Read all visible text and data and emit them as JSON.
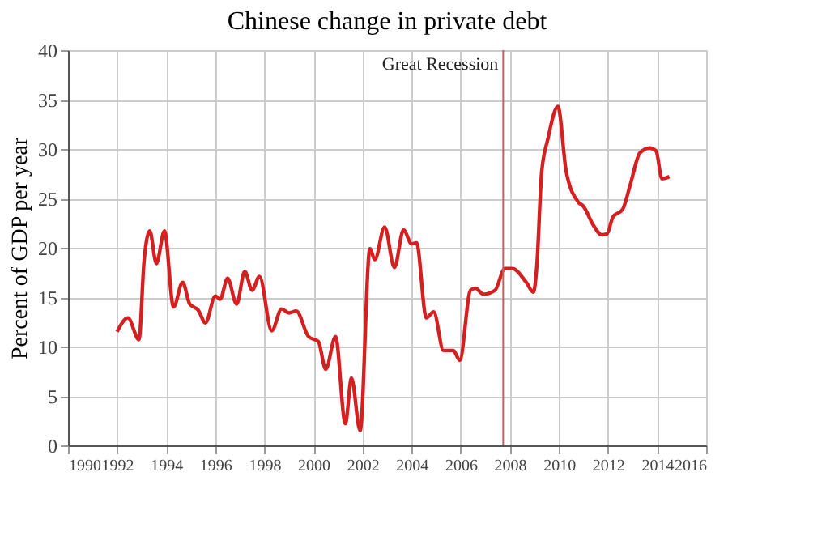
{
  "chart_data": {
    "type": "line",
    "title": "Chinese change in private debt",
    "ylabel": "Percent of GDP per year",
    "series": [
      {
        "color": "#d42020",
        "x": [
          1992.0,
          1992.44,
          1992.89,
          1993.1,
          1993.33,
          1993.6,
          1993.93,
          1994.3,
          1994.67,
          1994.96,
          1995.3,
          1995.6,
          1996.0,
          1996.2,
          1996.5,
          1996.87,
          1997.2,
          1997.5,
          1997.8,
          1998.3,
          1998.7,
          1999.0,
          1999.3,
          1999.8,
          2000.2,
          2000.5,
          2000.9,
          2001.3,
          2001.55,
          2001.9,
          2002.3,
          2002.5,
          2002.9,
          2003.3,
          2003.67,
          2004.0,
          2004.2,
          2004.6,
          2004.9,
          2005.3,
          2005.7,
          2005.96,
          2006.4,
          2006.6,
          2006.93,
          2007.4,
          2007.8,
          2008.1,
          2008.67,
          2008.96,
          2009.1,
          2009.3,
          2009.55,
          2009.96,
          2010.3,
          2010.8,
          2011.0,
          2011.4,
          2011.75,
          2011.96,
          2012.2,
          2012.6,
          2012.9,
          2013.3,
          2013.7,
          2013.96,
          2014.2,
          2014.5
        ],
        "values": [
          11.5,
          12.9,
          10.7,
          18.7,
          21.7,
          18.4,
          21.7,
          14.0,
          16.5,
          14.3,
          13.7,
          12.4,
          15.1,
          14.8,
          16.9,
          14.3,
          17.6,
          15.7,
          17.1,
          11.6,
          13.8,
          13.4,
          13.6,
          11.0,
          10.5,
          7.7,
          11.0,
          2.2,
          6.8,
          1.5,
          19.9,
          18.8,
          22.1,
          18.0,
          21.8,
          20.4,
          20.5,
          12.9,
          13.5,
          9.6,
          9.6,
          8.6,
          15.7,
          15.9,
          15.3,
          15.7,
          17.9,
          17.9,
          16.5,
          15.5,
          18.1,
          27.7,
          31.0,
          34.3,
          27.7,
          24.6,
          24.2,
          22.3,
          21.3,
          21.4,
          23.1,
          23.9,
          26.3,
          29.6,
          30.1,
          29.8,
          27.0,
          27.2
        ]
      }
    ],
    "xlim": [
      1990,
      2016
    ],
    "xticks": [
      1990,
      1992,
      1994,
      1996,
      1998,
      2000,
      2002,
      2004,
      2006,
      2008,
      2010,
      2012,
      2014,
      2016
    ],
    "ylim": [
      0,
      40
    ],
    "yticks": [
      0,
      5,
      10,
      15,
      20,
      25,
      30,
      35,
      40
    ],
    "ref_lines": [
      {
        "axis": "x",
        "value": 2007.73,
        "label": "Great Recession",
        "color": "#c06060"
      }
    ],
    "grid": true,
    "marker": "none",
    "line_style": "solid"
  }
}
